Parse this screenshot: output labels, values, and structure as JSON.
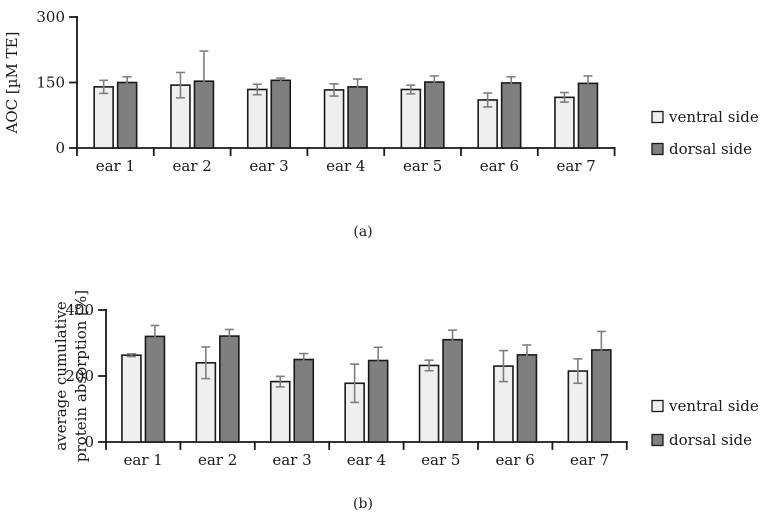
{
  "styles": {
    "background": "#ffffff",
    "axis_color": "#1a1a1a",
    "bar_border_color": "#1a1a1a",
    "error_bar_color": "#7f7f7f",
    "ventral_fill": "#efefef",
    "dorsal_fill": "#7f7f7f"
  },
  "chart_data": [
    {
      "type": "bar",
      "panel_label": "(a)",
      "ylabel_lines": [
        "AOC [µM TE]"
      ],
      "ylim": [
        0,
        300
      ],
      "yticks": [
        0,
        150,
        300
      ],
      "grid": false,
      "legend_position": "right",
      "categories": [
        "ear 1",
        "ear 2",
        "ear 3",
        "ear 4",
        "ear 5",
        "ear 6",
        "ear 7"
      ],
      "series": [
        {
          "name": "ventral side",
          "color": "#efefef",
          "values": [
            140,
            144,
            134,
            133,
            134,
            110,
            116
          ],
          "errors": [
            15,
            29,
            12,
            14,
            10,
            16,
            11
          ]
        },
        {
          "name": "dorsal side",
          "color": "#7f7f7f",
          "values": [
            150,
            153,
            155,
            140,
            151,
            149,
            148
          ],
          "errors": [
            13,
            69,
            5,
            18,
            14,
            14,
            17
          ]
        }
      ]
    },
    {
      "type": "bar",
      "panel_label": "(b)",
      "ylabel_lines": [
        "average cumulative",
        "protein absorption [%]"
      ],
      "ylim": [
        0,
        400
      ],
      "yticks": [
        0,
        200,
        400
      ],
      "grid": false,
      "legend_position": "right",
      "categories": [
        "ear 1",
        "ear 2",
        "ear 3",
        "ear 4",
        "ear 5",
        "ear 6",
        "ear 7"
      ],
      "series": [
        {
          "name": "ventral side",
          "color": "#efefef",
          "values": [
            263,
            240,
            183,
            178,
            232,
            230,
            215
          ],
          "errors": [
            4,
            48,
            16,
            58,
            16,
            47,
            37
          ]
        },
        {
          "name": "dorsal side",
          "color": "#7f7f7f",
          "values": [
            320,
            321,
            250,
            247,
            310,
            264,
            279
          ],
          "errors": [
            33,
            20,
            18,
            40,
            29,
            30,
            56
          ]
        }
      ]
    }
  ]
}
